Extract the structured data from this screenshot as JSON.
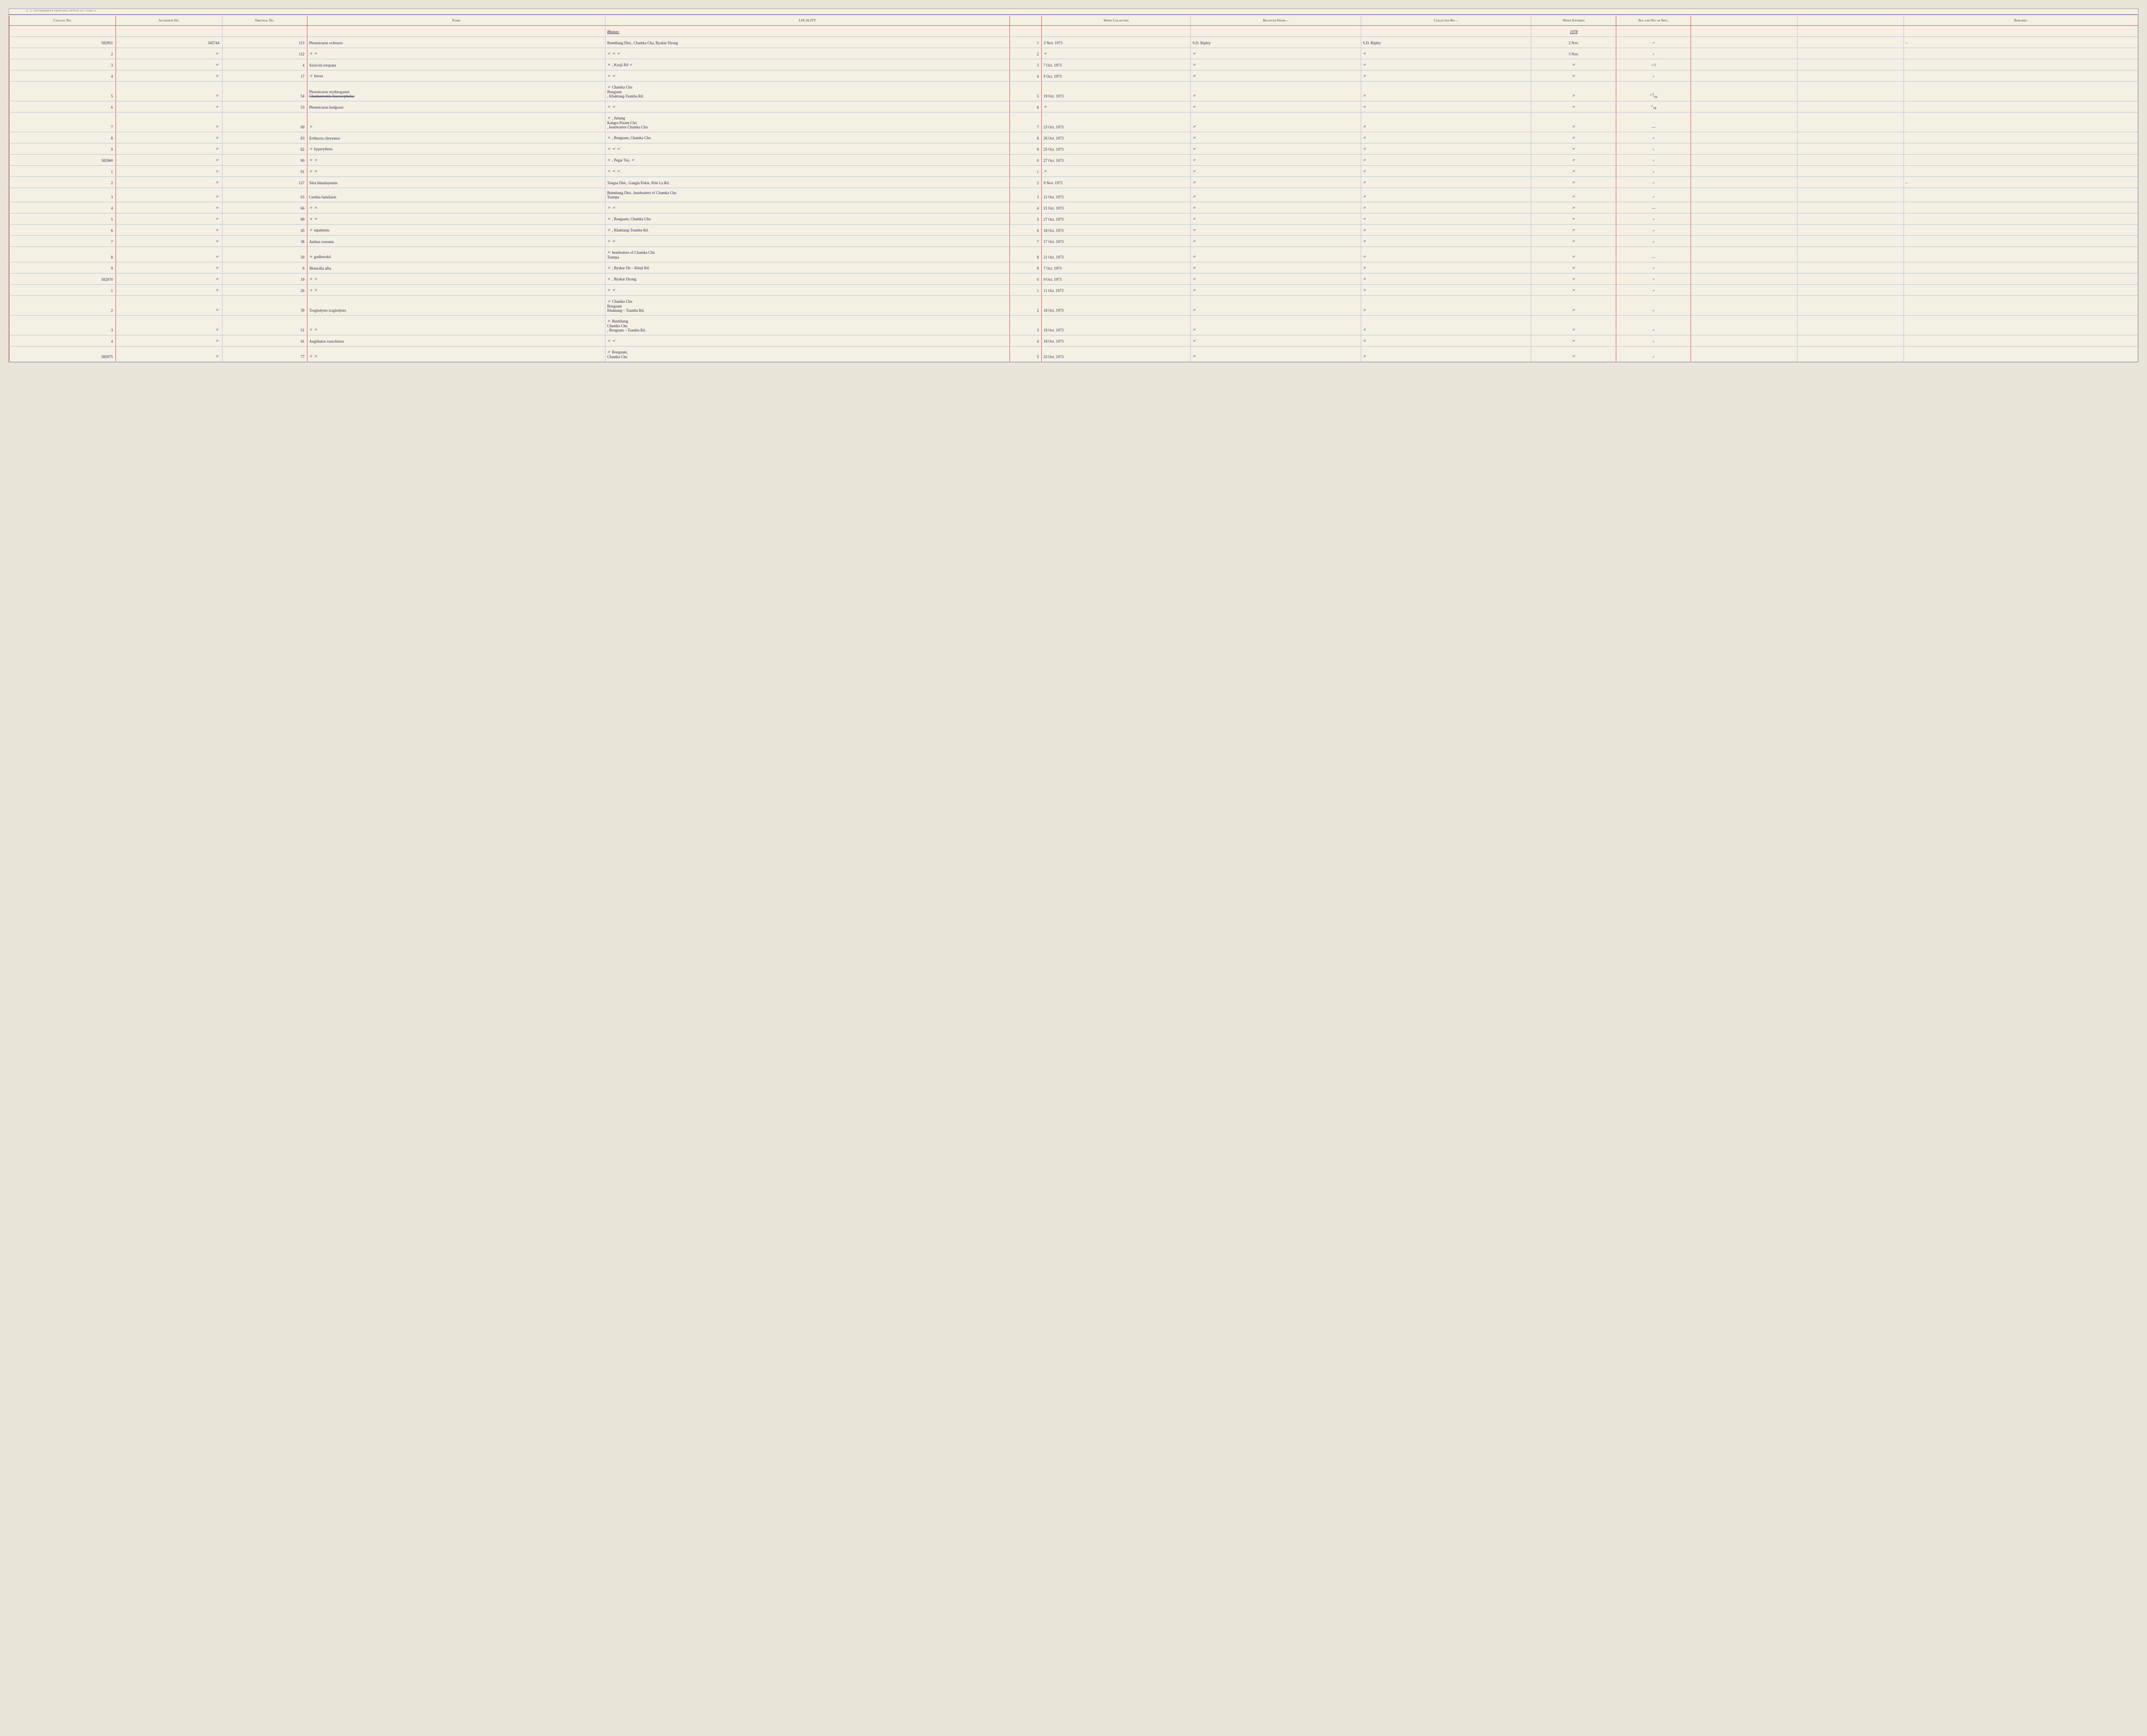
{
  "header_imprint": "U. S. GOVERNMENT PRINTING OFFICE    16—73581-3",
  "columns": {
    "catalog": "Catalog\nNo.",
    "accession": "Accession\nNo.",
    "original": "Original\nNo.",
    "name": "Name",
    "locality": "LOCALITY",
    "when_collected": "When\nCollected",
    "received_from": "Received From—",
    "collected_by": "Collected By—",
    "when_entered": "When\nEntered",
    "sex": "Sex and\nNo. of\nSpec.",
    "remarks": "Remarks"
  },
  "region_header": {
    "locality": "Bhutan:",
    "when_entered": "1978"
  },
  "rows": [
    {
      "catalog": "582951",
      "accession": "345744",
      "original": "113",
      "name": "Phoenicurus ochruros",
      "locality": "Bumthang Dist., Chamka Cha, Byakar Dzong",
      "seq": "1",
      "when_collected": "3 Nov. 1973",
      "received_from": "S.D. Ripley",
      "collected_by": "S.D. Ripley",
      "when_entered": "2 Nov.",
      "sex": "♂",
      "remarks": "–"
    },
    {
      "catalog": "2",
      "accession": "〃",
      "original": "112",
      "name": "〃        〃",
      "locality": "〃            〃            〃",
      "seq": "2",
      "when_collected": "〃",
      "received_from": "〃",
      "collected_by": "〃",
      "when_entered": "3 Nov.",
      "sex": "♀",
      "remarks": ""
    },
    {
      "catalog": "3",
      "accession": "〃",
      "original": "4",
      "name": "Saxicola torquata",
      "locality": "〃       , Kyuji Rd        〃",
      "seq": "3",
      "when_collected": "7 Oct. 1973",
      "received_from": "〃",
      "collected_by": "〃",
      "when_entered": "〃",
      "sex": "♂?",
      "remarks": ""
    },
    {
      "catalog": "4",
      "accession": "〃",
      "original": "17",
      "name": "〃    ferrea",
      "locality": "〃                      〃",
      "seq": "4",
      "when_collected": "9 Oct. 1973",
      "received_from": "〃",
      "collected_by": "〃",
      "when_entered": "〃",
      "sex": "♀",
      "remarks": ""
    },
    {
      "catalog": "5",
      "accession": "〃",
      "original": "54",
      "name": "Phoenicurus erythrogaster",
      "name_struck": "Chaimarrornis leucocephalus",
      "locality": "〃    Chamka Chu\nBongsam\n, Khaktang-Tsamba Rd.",
      "seq": "5",
      "when_collected": "19 Oct. 1973",
      "received_from": "〃",
      "collected_by": "〃",
      "when_entered": "〃",
      "sex": "♂?",
      "sex_sub": "yg.",
      "remarks": ""
    },
    {
      "catalog": "6",
      "accession": "〃",
      "original": "53",
      "name": "Phoenicurus hodgsoni",
      "locality": "〃         〃",
      "seq": "6",
      "when_collected": "〃",
      "received_from": "〃",
      "collected_by": "〃",
      "when_entered": "〃",
      "sex": "♂",
      "sex_sub": "yg.",
      "remarks": ""
    },
    {
      "catalog": "7",
      "accession": "〃",
      "original": "69",
      "name": "〃",
      "locality": "〃    , Juitang\nKangra Pizum Chu\n, headwaters Chamka Chu",
      "seq": "7",
      "when_collected": "23 Oct. 1973",
      "received_from": "〃",
      "collected_by": "〃",
      "when_entered": "〃",
      "sex": "—",
      "remarks": ""
    },
    {
      "catalog": "8",
      "accession": "〃",
      "original": "83",
      "name": "Erithacus chrysaeus",
      "locality": "〃    , Bongsam, Chamka Chu",
      "seq": "8",
      "when_collected": "26 Oct. 1973",
      "received_from": "〃",
      "collected_by": "〃",
      "when_entered": "〃",
      "sex": "♂",
      "remarks": ""
    },
    {
      "catalog": "9",
      "accession": "〃",
      "original": "82",
      "name": "〃    hyperythrus",
      "locality": "〃         〃         〃",
      "seq": "9",
      "when_collected": "25 Oct. 1973",
      "received_from": "〃",
      "collected_by": "〃",
      "when_entered": "〃",
      "sex": "♀",
      "remarks": ""
    },
    {
      "catalog": "582960",
      "accession": "〃",
      "original": "90",
      "name": "〃        〃",
      "locality": "〃    , Pegar Tso,    〃",
      "seq": "0",
      "when_collected": "27 Oct. 1973",
      "received_from": "〃",
      "collected_by": "〃",
      "when_entered": "〃",
      "sex": "♀",
      "remarks": ""
    },
    {
      "catalog": "1",
      "accession": "〃",
      "original": "91",
      "name": "〃        〃",
      "locality": "〃         〃         〃",
      "seq": "1",
      "when_collected": "〃",
      "received_from": "〃",
      "collected_by": "〃",
      "when_entered": "〃",
      "sex": "♀",
      "remarks": ""
    },
    {
      "catalog": "2",
      "accession": "〃",
      "original": "127",
      "name": "Sitta himalayensis",
      "locality": "Tongsa Dist., Gangla Pokte, Pele La Rd.",
      "seq": "2",
      "when_collected": "9 Nov. 1973",
      "received_from": "〃",
      "collected_by": "〃",
      "when_entered": "〃",
      "sex": "♂",
      "remarks": "–"
    },
    {
      "catalog": "3",
      "accession": "〃",
      "original": "65",
      "name": "Certhia familiaris",
      "locality": "Bumthang Dist., headwaters of Chamka Chu\nTsampa",
      "seq": "3",
      "when_collected": "21 Oct. 1973",
      "received_from": "〃",
      "collected_by": "〃",
      "when_entered": "〃",
      "sex": "♂",
      "remarks": ""
    },
    {
      "catalog": "4",
      "accession": "〃",
      "original": "66",
      "name": "〃        〃",
      "locality": "〃            〃",
      "seq": "4",
      "when_collected": "21 Oct. 1973",
      "received_from": "〃",
      "collected_by": "〃",
      "when_entered": "〃",
      "sex": "—",
      "remarks": ""
    },
    {
      "catalog": "5",
      "accession": "〃",
      "original": "89",
      "name": "〃        〃",
      "locality": "〃    , Bongsam, Chamka Chu",
      "seq": "5",
      "when_collected": "27 Oct. 1973",
      "received_from": "〃",
      "collected_by": "〃",
      "when_entered": "〃",
      "sex": "♂",
      "remarks": ""
    },
    {
      "catalog": "6",
      "accession": "〃",
      "original": "45",
      "name": "〃    nipalensis",
      "locality": "〃    , Khaktang-Tsamba Rd.",
      "seq": "6",
      "when_collected": "18 Oct. 1973",
      "received_from": "〃",
      "collected_by": "〃",
      "when_entered": "〃",
      "sex": "♂",
      "remarks": ""
    },
    {
      "catalog": "7",
      "accession": "〃",
      "original": "38",
      "name": "Anthus roseatus",
      "locality": "〃            〃",
      "seq": "7",
      "when_collected": "17 Oct. 1973",
      "received_from": "〃",
      "collected_by": "〃",
      "when_entered": "〃",
      "sex": "○",
      "remarks": ""
    },
    {
      "catalog": "8",
      "accession": "〃",
      "original": "59",
      "name": "〃    godlewskii",
      "locality": "〃    headwaters of Chamka Chu\nTsampa",
      "seq": "8",
      "when_collected": "21 Oct. 1973",
      "received_from": "〃",
      "collected_by": "〃",
      "when_entered": "〃",
      "sex": "—",
      "remarks": ""
    },
    {
      "catalog": "9",
      "accession": "〃",
      "original": "6",
      "name": "Motacilla alba",
      "locality": "〃    , Byakar Dz – Khuji Rd.",
      "seq": "9",
      "when_collected": "7 Oct. 1973",
      "received_from": "〃",
      "collected_by": "〃",
      "when_entered": "〃",
      "sex": "♂",
      "remarks": ""
    },
    {
      "catalog": "582970",
      "accession": "〃",
      "original": "19",
      "name": "〃        〃",
      "locality": "〃    , Byakar Dzong",
      "seq": "0",
      "when_collected": "9 Oct. 1973",
      "received_from": "〃",
      "collected_by": "〃",
      "when_entered": "〃",
      "sex": "♂",
      "remarks": ""
    },
    {
      "catalog": "1",
      "accession": "〃",
      "original": "26",
      "name": "〃        〃",
      "locality": "〃            〃",
      "seq": "1",
      "when_collected": "11 Oct. 1973",
      "received_from": "〃",
      "collected_by": "〃",
      "when_entered": "〃",
      "sex": "♂",
      "remarks": ""
    },
    {
      "catalog": "2",
      "accession": "〃",
      "original": "39",
      "name": "Troglodytes troglodytes",
      "locality": "〃    Chamka Chu\nBongsam\nKhaktang – Tsamba Rd.",
      "seq": "2",
      "when_collected": "18 Oct. 1973",
      "received_from": "〃",
      "collected_by": "〃",
      "when_entered": "〃",
      "sex": "○",
      "remarks": ""
    },
    {
      "catalog": "3",
      "accession": "〃",
      "original": "51",
      "name": "〃        〃",
      "locality": "〃    Bumthang\nChamka Chu\n, Bongsam – Tsamba Rd.",
      "seq": "3",
      "when_collected": "19 Oct. 1973",
      "received_from": "〃",
      "collected_by": "〃",
      "when_entered": "〃",
      "sex": "♂",
      "remarks": ""
    },
    {
      "catalog": "4",
      "accession": "〃",
      "original": "41",
      "name": "Aegithalos iouschistos",
      "locality": "〃            〃",
      "seq": "4",
      "when_collected": "18 Oct. 1973",
      "received_from": "〃",
      "collected_by": "〃",
      "when_entered": "〃",
      "sex": "○",
      "remarks": ""
    },
    {
      "catalog": "582975",
      "accession": "〃",
      "original": "77",
      "name": "〃        〃",
      "locality": "〃    Bongsam,\nChamka Chu",
      "seq": "5",
      "when_collected": "25 Oct. 1973",
      "received_from": "〃",
      "collected_by": "〃",
      "when_entered": "〃",
      "sex": "♀",
      "remarks": ""
    }
  ]
}
